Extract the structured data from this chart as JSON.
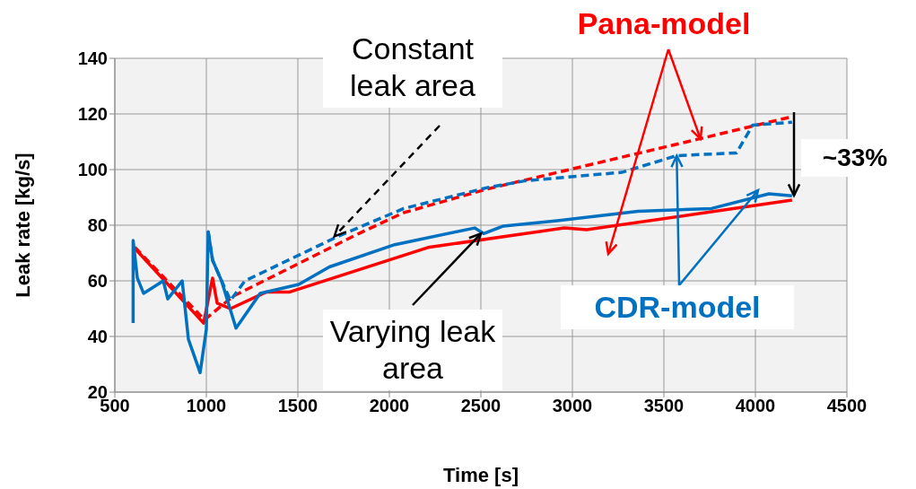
{
  "chart_data": {
    "type": "line",
    "xlabel": "Time [s]",
    "ylabel": "Leak rate [kg/s]",
    "xlim": [
      500,
      4500
    ],
    "xticks": [
      500,
      1000,
      1500,
      2000,
      2500,
      3000,
      3500,
      4000,
      4500
    ],
    "ylim": [
      20,
      140
    ],
    "yticks": [
      20,
      40,
      60,
      80,
      100,
      120,
      140
    ],
    "grid": true,
    "marker": "none",
    "series": [
      {
        "color": "#ff0000",
        "line_style": "solid",
        "x": [
          610,
          985,
          1034,
          1059,
          1132,
          1328,
          1456,
          2211,
          2956,
          3078,
          4200
        ],
        "values": [
          71.6,
          44.8,
          61,
          52,
          50,
          56,
          56,
          72,
          79,
          78.4,
          89
        ]
      },
      {
        "color": "#ff0000",
        "line_style": "dashed",
        "x": [
          610,
          990,
          1147,
          1833,
          2078,
          2534,
          3691,
          4200
        ],
        "values": [
          72,
          46,
          54.5,
          77,
          84.5,
          93,
          111,
          119
        ]
      },
      {
        "color": "#0070c0",
        "line_style": "dashed",
        "x": [
          1010,
          1034,
          1083,
          1132,
          1211,
          1720,
          2078,
          2534,
          2745,
          3270,
          3569,
          3897,
          3985,
          4200
        ],
        "values": [
          77.7,
          67.4,
          60,
          53,
          60,
          76,
          86,
          93.5,
          96,
          99,
          105,
          106,
          116,
          117
        ]
      },
      {
        "color": "#0070c0",
        "line_style": "solid",
        "x": [
          600,
          600,
          623,
          657,
          765,
          789,
          868,
          902,
          966,
          1000,
          1010,
          1034,
          1083,
          1162,
          1294,
          1505,
          1672,
          2029,
          2466,
          2515,
          2623,
          2917,
          3358,
          3760,
          4074,
          4200
        ],
        "values": [
          44.8,
          74.5,
          61,
          55.5,
          60,
          53.5,
          60,
          39,
          27,
          42.6,
          77.7,
          67.4,
          60,
          43,
          55.5,
          58.7,
          65,
          73,
          79,
          77,
          79.7,
          81.6,
          85,
          86,
          91.3,
          90.6
        ]
      }
    ],
    "annotations": [
      {
        "text": "Constant leak area",
        "x": 1700,
        "y": 76
      },
      {
        "text": "Varying leak area",
        "x": 2500,
        "y": 77
      },
      {
        "text": "Pana-model",
        "x": 3700,
        "y": 111
      },
      {
        "text": "CDR-model",
        "x": 3570,
        "y": 105
      },
      "~33%"
    ]
  }
}
